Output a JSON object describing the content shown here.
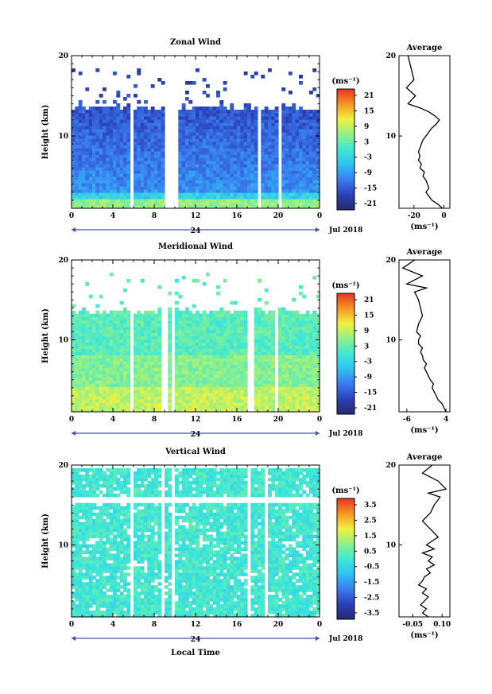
{
  "chart_data": [
    {
      "type": "heatmap",
      "title": "Zonal Wind",
      "xlabel": "",
      "ylabel": "Height (km)",
      "x_ticks": [
        "0",
        "4",
        "8",
        "12",
        "16",
        "20",
        "0"
      ],
      "y_ticks": [
        "10",
        "20"
      ],
      "xlim": [
        0,
        24
      ],
      "ylim": [
        1,
        20
      ],
      "date_mid": "24",
      "date_right": "Jul 2018",
      "colorbar": {
        "unit": "(ms⁻¹)",
        "ticks": [
          "21",
          "15",
          "9",
          "3",
          "-3",
          "-9",
          "-15",
          "-21"
        ],
        "range": [
          -24,
          24
        ]
      },
      "field_level": -10,
      "gap_hours": [
        5.8,
        9.3,
        10.0,
        18.2,
        20.2
      ],
      "profile": {
        "title": "Average",
        "xlabel": "(ms⁻¹)",
        "x_ticks": [
          "-20",
          "0"
        ],
        "xlim": [
          -30,
          4
        ],
        "x": [
          -1,
          -4,
          -8,
          -10,
          -12,
          -10,
          -11,
          -12,
          -14,
          -13,
          -16,
          -15,
          -17,
          -16,
          -17,
          -16,
          -15,
          -14,
          -12,
          -10,
          -8,
          -5,
          -3,
          -6,
          -10,
          -16,
          -24,
          -19,
          -25,
          -20,
          -24
        ],
        "y": [
          1,
          1.5,
          2,
          2.5,
          3,
          3.5,
          4,
          4.5,
          5,
          5.5,
          6,
          6.5,
          7,
          7.5,
          8,
          8.5,
          9,
          9.5,
          10,
          10.5,
          11,
          11.5,
          12,
          12.5,
          13,
          13.5,
          14,
          15,
          16,
          17,
          20
        ]
      }
    },
    {
      "type": "heatmap",
      "title": "Meridional Wind",
      "xlabel": "",
      "ylabel": "Height (km)",
      "x_ticks": [
        "0",
        "4",
        "8",
        "12",
        "16",
        "20",
        "0"
      ],
      "y_ticks": [
        "10",
        "20"
      ],
      "xlim": [
        0,
        24
      ],
      "ylim": [
        1,
        20
      ],
      "date_mid": "24",
      "date_right": "Jul 2018",
      "colorbar": {
        "unit": "(ms⁻¹)",
        "ticks": [
          "21",
          "15",
          "9",
          "3",
          "-3",
          "-9",
          "-15",
          "-21"
        ],
        "range": [
          -24,
          24
        ]
      },
      "field_level": 4,
      "gap_hours": [
        5.8,
        9.0,
        9.8,
        17.3,
        19.8
      ],
      "profile": {
        "title": "Average",
        "xlabel": "(ms⁻¹)",
        "x_ticks": [
          "-6",
          "4"
        ],
        "xlim": [
          -8,
          5
        ],
        "x": [
          4,
          3.5,
          3,
          2,
          1.5,
          1,
          0.5,
          0.8,
          0,
          -0.5,
          -1,
          -1.5,
          -1,
          -1.8,
          -2,
          -2.5,
          -2,
          -3,
          -3,
          -2.5,
          -3.5,
          -3,
          -2,
          -2.5,
          -3,
          -4,
          -1,
          -6,
          -2,
          -7,
          -4
        ],
        "y": [
          1,
          1.5,
          2,
          2.5,
          3,
          3.5,
          4,
          4.5,
          5,
          5.5,
          6,
          6.5,
          7,
          7.5,
          8,
          8.5,
          9,
          9.5,
          10,
          10.5,
          11,
          12,
          13,
          14,
          15,
          16,
          16.5,
          17,
          18,
          19,
          20
        ]
      }
    },
    {
      "type": "heatmap",
      "title": "Vertical Wind",
      "xlabel": "Local Time",
      "ylabel": "Height (km)",
      "x_ticks": [
        "0",
        "4",
        "8",
        "12",
        "16",
        "20",
        "0"
      ],
      "y_ticks": [
        "10",
        "20"
      ],
      "xlim": [
        0,
        24
      ],
      "ylim": [
        1,
        20
      ],
      "date_mid": "24",
      "date_right": "Jul 2018",
      "colorbar": {
        "unit": "(ms⁻¹)",
        "ticks": [
          "3.5",
          "2.5",
          "1.5",
          "0.5",
          "-0.5",
          "-1.5",
          "-2.5",
          "-3.5"
        ],
        "range": [
          -4,
          4
        ]
      },
      "field_level": 0,
      "gap_hours": [
        5.8,
        8.8,
        9.8,
        17.2,
        18.8
      ],
      "profile": {
        "title": "Average",
        "xlabel": "(ms⁻¹)",
        "x_ticks": [
          "-0.05",
          "0.10"
        ],
        "xlim": [
          -0.12,
          0.14
        ],
        "x": [
          0.03,
          0.0,
          0.02,
          -0.01,
          0.01,
          0.03,
          0.0,
          0.02,
          -0.02,
          0.0,
          0.01,
          0.04,
          0.02,
          0.06,
          0.03,
          0.05,
          0.0,
          0.06,
          0.02,
          0.05,
          0.08,
          0.04,
          0.0,
          0.04,
          0.06,
          0.09,
          0.03,
          0.12,
          0.08,
          0.0,
          0.05
        ],
        "y": [
          1,
          1.5,
          2,
          2.5,
          3,
          3.5,
          4,
          4.5,
          5,
          5.5,
          6,
          6.5,
          7,
          7.5,
          8,
          8.5,
          9,
          9.5,
          10,
          10.5,
          11,
          12,
          13,
          14,
          15,
          16,
          16.5,
          17,
          18,
          19,
          20
        ]
      }
    }
  ]
}
